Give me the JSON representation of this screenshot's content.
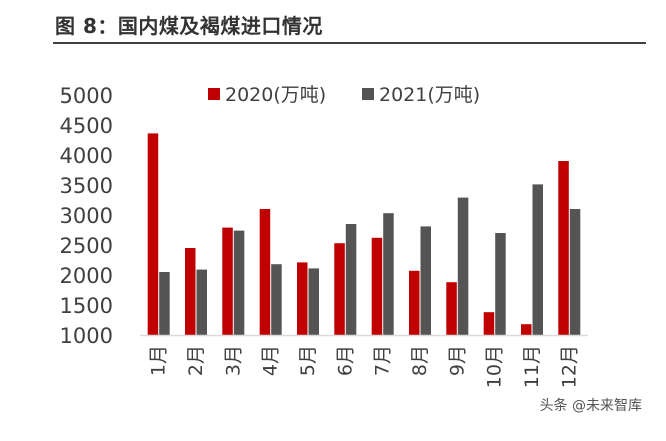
{
  "header": {
    "title": "图 8：国内煤及褐煤进口情况"
  },
  "watermark": "头条 @未来智库",
  "colors": {
    "series_2020": "#c00000",
    "series_2021": "#545454",
    "axis": "#d9d9d9",
    "text": "#404040"
  },
  "chart_data": {
    "type": "bar",
    "title": "",
    "xlabel": "",
    "ylabel": "",
    "categories": [
      "1月",
      "2月",
      "3月",
      "4月",
      "5月",
      "6月",
      "7月",
      "8月",
      "9月",
      "10月",
      "11月",
      "12月"
    ],
    "series": [
      {
        "name": "2020(万吨)",
        "color": "#c00000",
        "values": [
          4360,
          2450,
          2790,
          3100,
          2210,
          2530,
          2620,
          2070,
          1880,
          1380,
          1180,
          3900
        ]
      },
      {
        "name": "2021(万吨)",
        "color": "#545454",
        "values": [
          2050,
          2090,
          2740,
          2180,
          2110,
          2850,
          3030,
          2810,
          3290,
          2700,
          3510,
          3100
        ]
      }
    ],
    "ylim": [
      1000,
      5000
    ],
    "yticks": [
      1000,
      1500,
      2000,
      2500,
      3000,
      3500,
      4000,
      4500,
      5000
    ],
    "grid": false,
    "legend_position": "top-center"
  }
}
